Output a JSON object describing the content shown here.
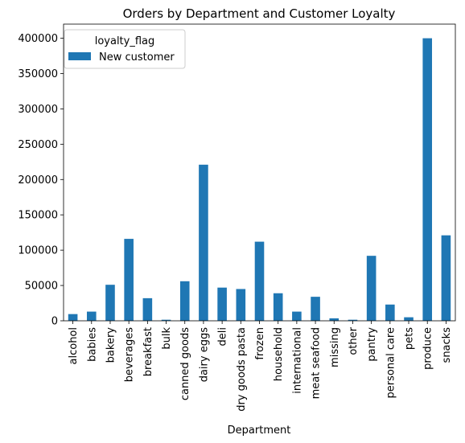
{
  "chart_data": {
    "type": "bar",
    "title": "Orders by Department and Customer Loyalty",
    "xlabel": "Department",
    "ylabel": "",
    "ylim": [
      0,
      420000
    ],
    "yticks": [
      0,
      50000,
      100000,
      150000,
      200000,
      250000,
      300000,
      350000,
      400000
    ],
    "grid": false,
    "legend": {
      "title": "loyalty_flag",
      "placement": "top-left"
    },
    "categories": [
      "alcohol",
      "babies",
      "bakery",
      "beverages",
      "breakfast",
      "bulk",
      "canned goods",
      "dairy eggs",
      "deli",
      "dry goods pasta",
      "frozen",
      "household",
      "international",
      "meat seafood",
      "missing",
      "other",
      "pantry",
      "personal care",
      "pets",
      "produce",
      "snacks"
    ],
    "series": [
      {
        "name": "New customer",
        "color": "#1f77b4",
        "values": [
          9500,
          13000,
          51000,
          116000,
          32000,
          1500,
          56000,
          221000,
          47000,
          45000,
          112000,
          39000,
          13000,
          34000,
          3500,
          1500,
          92000,
          23000,
          5000,
          400000,
          121000
        ]
      }
    ]
  }
}
